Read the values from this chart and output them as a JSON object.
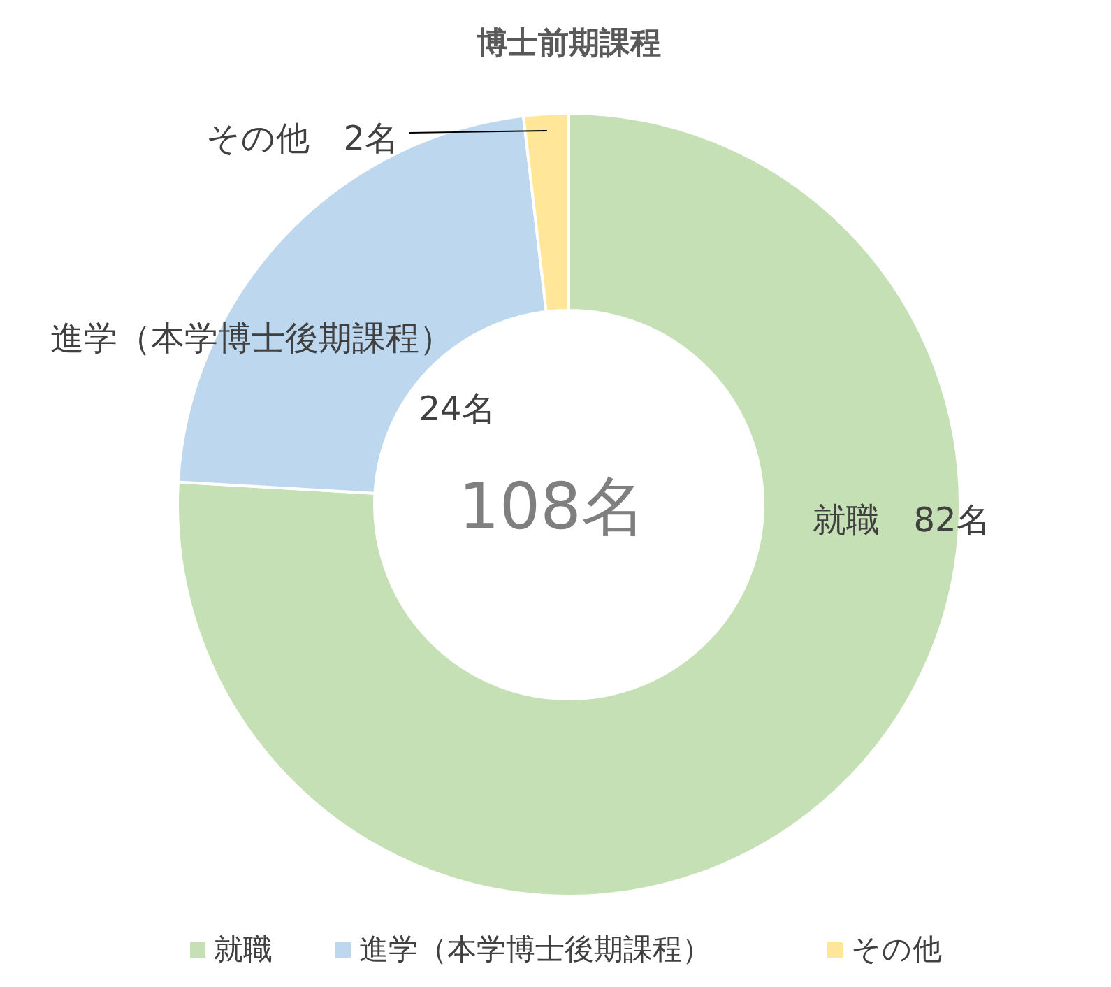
{
  "chart_data": {
    "type": "donut",
    "title": "博士前期課程",
    "categories": [
      "就職",
      "進学（本学博士後期課程）",
      "その他"
    ],
    "values": [
      82,
      24,
      2
    ],
    "colors": [
      "#c5e0b4",
      "#bdd7ee",
      "#ffe699"
    ],
    "value_labels": [
      "就職　82名",
      "進学（本学博士後期課程）\n24名",
      "その他　2名"
    ],
    "annotations": [
      "108名"
    ],
    "legend": "bottom"
  }
}
